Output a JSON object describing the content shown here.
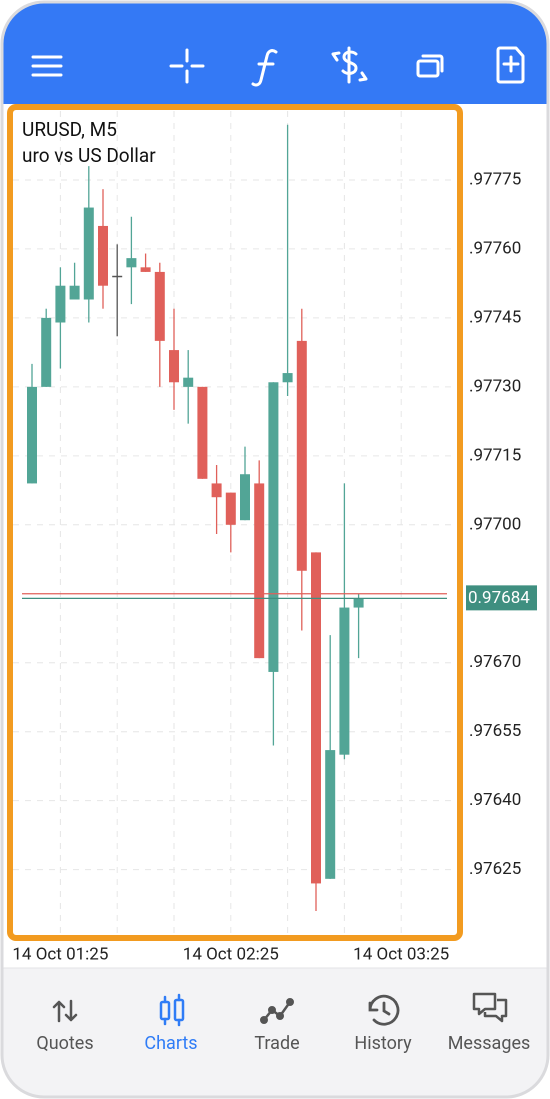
{
  "chart_data": {
    "type": "candlestick",
    "title": "URUSD, M5",
    "subtitle": "uro vs US Dollar",
    "categories": [
      null,
      null,
      "14 Oct 01:25",
      null,
      null,
      null,
      null,
      null,
      null,
      null,
      null,
      null,
      null,
      null,
      "14 Oct 02:25",
      null,
      null,
      null,
      null,
      null,
      null,
      null,
      null,
      null,
      null,
      null,
      "14 Oct 03:25"
    ],
    "series": [
      {
        "open": [
          0.97709,
          0.9773,
          0.97744,
          0.97749,
          0.97749,
          0.97765,
          0.97754,
          0.97756,
          0.97756,
          0.97755,
          0.97738,
          0.9773,
          0.9773,
          0.97709,
          0.97707,
          0.97701,
          0.97709,
          0.97668,
          0.97731,
          0.9774,
          0.97694,
          0.97623,
          0.9765,
          0.97682,
          null,
          null,
          null
        ],
        "high": [
          0.97735,
          0.97747,
          0.97756,
          0.97757,
          0.97778,
          0.97773,
          0.97761,
          0.97767,
          0.97759,
          0.97757,
          0.97747,
          0.97738,
          0.9773,
          0.97713,
          0.97707,
          0.97717,
          0.97714,
          0.97731,
          0.97787,
          0.97747,
          0.97694,
          0.97676,
          0.97709,
          0.97685,
          null,
          null,
          null
        ],
        "low": [
          0.97709,
          0.9773,
          0.97734,
          0.97749,
          0.97744,
          0.97747,
          0.97741,
          0.97748,
          0.97755,
          0.9773,
          0.97725,
          0.97722,
          0.9771,
          0.97698,
          0.97694,
          0.97701,
          0.97671,
          0.97652,
          0.97728,
          0.97677,
          0.97616,
          0.97623,
          0.97649,
          0.97671,
          null,
          null,
          null
        ],
        "close": [
          0.9773,
          0.97745,
          0.97752,
          0.97752,
          0.97769,
          0.97752,
          0.97754,
          0.97758,
          0.97755,
          0.9774,
          0.97731,
          0.97732,
          0.9771,
          0.97706,
          0.977,
          0.97711,
          0.97671,
          0.97731,
          0.97733,
          0.9769,
          0.97622,
          0.97651,
          0.97682,
          0.97684,
          null,
          null,
          null
        ]
      }
    ],
    "up_color": "#52a596",
    "down_color": "#e0605a",
    "flat_color": "#555555",
    "ylim": [
      0.97611,
      0.9779
    ],
    "yticks": [
      {
        "value": 0.97775,
        "label": ".97775"
      },
      {
        "value": 0.9776,
        "label": ".97760"
      },
      {
        "value": 0.97745,
        "label": ".97745"
      },
      {
        "value": 0.9773,
        "label": ".97730"
      },
      {
        "value": 0.97715,
        "label": ".97715"
      },
      {
        "value": 0.977,
        "label": ".97700"
      },
      {
        "value": 0.9767,
        "label": ".97670"
      },
      {
        "value": 0.97655,
        "label": ".97655"
      },
      {
        "value": 0.9764,
        "label": ".97640"
      },
      {
        "value": 0.97625,
        "label": ".97625"
      }
    ],
    "grid": true,
    "price_lines": [
      {
        "value": 0.97685,
        "color": "#e0605a"
      },
      {
        "value": 0.97684,
        "color": "#3f8f80",
        "label": "0.97684"
      }
    ]
  },
  "nav": {
    "items": [
      {
        "label": "Quotes",
        "active": false
      },
      {
        "label": "Charts",
        "active": true
      },
      {
        "label": "Trade",
        "active": false
      },
      {
        "label": "History",
        "active": false
      },
      {
        "label": "Messages",
        "active": false
      }
    ],
    "active_color": "#2f7cf6",
    "color": "#555555"
  }
}
